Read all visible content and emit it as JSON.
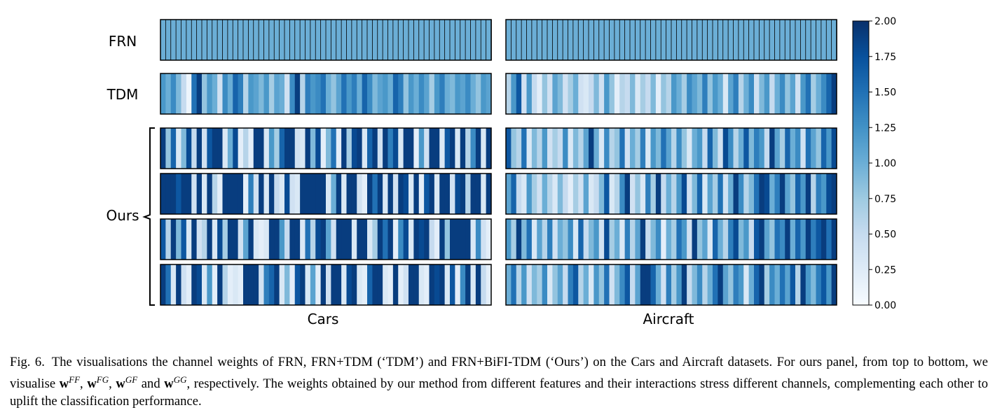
{
  "chart_data": {
    "type": "heatmap",
    "panels": [
      "Cars",
      "Aircraft"
    ],
    "row_labels": [
      "FRN",
      "TDM",
      "Ours"
    ],
    "colormap": "Blues",
    "vmin": 0,
    "vmax": 2.0,
    "colorbar_ticks": [
      "0.00",
      "0.25",
      "0.50",
      "0.75",
      "1.00",
      "1.25",
      "1.50",
      "1.75",
      "2.00"
    ],
    "channels_per_row": 64,
    "rows": [
      {
        "label": "FRN",
        "cars": [
          1.0,
          1.0,
          1.0,
          1.0,
          1.0,
          1.0,
          1.0,
          1.0,
          1.0,
          1.0,
          1.0,
          1.0,
          1.0,
          1.0,
          1.0,
          1.0,
          1.0,
          1.0,
          1.0,
          1.0,
          1.0,
          1.0,
          1.0,
          1.0,
          1.0,
          1.0,
          1.0,
          1.0,
          1.0,
          1.0,
          1.0,
          1.0,
          1.0,
          1.0,
          1.0,
          1.0,
          1.0,
          1.0,
          1.0,
          1.0,
          1.0,
          1.0,
          1.0,
          1.0,
          1.0,
          1.0,
          1.0,
          1.0,
          1.0,
          1.0,
          1.0,
          1.0,
          1.0,
          1.0,
          1.0,
          1.0,
          1.0,
          1.0,
          1.0,
          1.0,
          1.0,
          1.0,
          1.0,
          1.0
        ],
        "aircraft": [
          1.0,
          1.0,
          1.0,
          1.0,
          1.0,
          1.0,
          1.0,
          1.0,
          1.0,
          1.0,
          1.0,
          1.0,
          1.0,
          1.0,
          1.0,
          1.0,
          1.0,
          1.0,
          1.0,
          1.0,
          1.0,
          1.0,
          1.0,
          1.0,
          1.0,
          1.0,
          1.0,
          1.0,
          1.0,
          1.0,
          1.0,
          1.0,
          1.0,
          1.0,
          1.0,
          1.0,
          1.0,
          1.0,
          1.0,
          1.0,
          1.0,
          1.0,
          1.0,
          1.0,
          1.0,
          1.0,
          1.0,
          1.0,
          1.0,
          1.0,
          1.0,
          1.0,
          1.0,
          1.0,
          1.0,
          1.0,
          1.0,
          1.0,
          1.0,
          1.0,
          1.0,
          1.0,
          1.0,
          1.0
        ]
      },
      {
        "label": "TDM",
        "cars": [
          1.2,
          1.0,
          1.3,
          0.9,
          0.5,
          0.1,
          1.5,
          1.9,
          0.8,
          1.2,
          1.0,
          0.4,
          1.3,
          1.0,
          1.6,
          1.4,
          0.6,
          1.2,
          1.1,
          0.9,
          1.2,
          0.7,
          1.1,
          1.0,
          0.4,
          1.3,
          1.9,
          0.6,
          1.4,
          1.2,
          1.3,
          1.5,
          1.0,
          0.8,
          1.1,
          1.5,
          1.2,
          1.4,
          1.0,
          1.6,
          1.3,
          0.9,
          1.1,
          1.2,
          1.0,
          1.6,
          1.4,
          0.8,
          1.2,
          1.0,
          1.3,
          1.1,
          0.7,
          1.2,
          1.4,
          1.0,
          0.9,
          1.2,
          1.1,
          1.3,
          1.0,
          0.8,
          1.2,
          1.1
        ],
        "aircraft": [
          0.6,
          1.2,
          1.7,
          0.4,
          1.2,
          0.5,
          0.2,
          0.8,
          0.4,
          1.1,
          0.9,
          0.4,
          0.7,
          1.0,
          0.4,
          0.3,
          0.5,
          0.9,
          0.4,
          1.2,
          0.8,
          0.2,
          0.6,
          0.5,
          0.9,
          0.3,
          0.7,
          0.5,
          0.9,
          0.2,
          0.8,
          0.6,
          1.2,
          1.0,
          0.7,
          1.3,
          1.1,
          0.9,
          1.4,
          0.8,
          1.2,
          1.0,
          0.3,
          1.1,
          1.4,
          0.6,
          1.0,
          1.3,
          0.4,
          0.9,
          1.2,
          0.5,
          1.0,
          1.3,
          0.8,
          1.1,
          0.4,
          1.2,
          1.5,
          0.7,
          1.0,
          1.3,
          1.6,
          1.9
        ]
      },
      {
        "label": "Ours (w^FF)",
        "cars": [
          1.9,
          0.8,
          1.6,
          0.3,
          0.9,
          1.8,
          0.5,
          1.9,
          0.4,
          1.7,
          1.9,
          1.9,
          0.3,
          1.0,
          1.8,
          0.2,
          0.6,
          0.2,
          1.9,
          1.9,
          0.3,
          1.2,
          0.7,
          1.6,
          1.9,
          1.9,
          0.4,
          0.3,
          1.9,
          0.9,
          1.8,
          0.2,
          0.9,
          1.5,
          0.2,
          1.9,
          0.7,
          1.8,
          1.9,
          0.3,
          1.6,
          1.9,
          0.4,
          1.9,
          1.4,
          1.8,
          0.3,
          1.9,
          1.9,
          0.2,
          1.2,
          0.4,
          1.9,
          1.9,
          0.3,
          1.7,
          1.9,
          0.3,
          1.9,
          0.6,
          1.3,
          1.9,
          0.3,
          1.9
        ],
        "aircraft": [
          1.7,
          0.8,
          0.6,
          1.5,
          0.3,
          0.9,
          0.6,
          1.2,
          0.4,
          0.7,
          0.5,
          1.3,
          0.3,
          0.9,
          0.6,
          1.1,
          1.9,
          1.0,
          0.3,
          1.3,
          0.6,
          0.8,
          1.5,
          0.4,
          1.0,
          0.7,
          1.4,
          0.3,
          1.2,
          0.9,
          1.5,
          1.1,
          0.6,
          1.3,
          0.8,
          0.3,
          1.0,
          1.2,
          0.5,
          1.6,
          0.9,
          0.4,
          1.8,
          1.3,
          0.6,
          1.0,
          1.7,
          0.9,
          1.4,
          1.2,
          0.5,
          1.9,
          1.1,
          0.7,
          1.6,
          1.0,
          1.3,
          0.4,
          1.5,
          1.1,
          0.8,
          1.6,
          1.2,
          1.8
        ]
      },
      {
        "label": "Ours (w^FG)",
        "cars": [
          1.9,
          1.9,
          1.9,
          1.7,
          1.9,
          1.9,
          0.4,
          1.9,
          0.3,
          1.9,
          0.6,
          0.2,
          1.9,
          1.9,
          1.9,
          1.9,
          0.2,
          1.4,
          0.4,
          1.9,
          0.3,
          1.9,
          0.5,
          0.3,
          1.8,
          0.4,
          0.3,
          1.9,
          1.9,
          1.9,
          1.9,
          1.9,
          0.3,
          1.0,
          1.9,
          0.3,
          1.9,
          1.9,
          0.4,
          0.2,
          1.9,
          1.5,
          1.9,
          0.3,
          1.9,
          0.4,
          1.9,
          1.8,
          0.3,
          1.9,
          0.2,
          1.7,
          1.9,
          0.3,
          1.9,
          1.9,
          0.4,
          1.8,
          1.9,
          0.6,
          1.9,
          1.9,
          0.3,
          1.9
        ],
        "aircraft": [
          1.1,
          1.6,
          0.5,
          0.3,
          1.2,
          0.7,
          0.4,
          1.0,
          0.6,
          0.3,
          0.9,
          0.5,
          0.2,
          0.7,
          0.4,
          1.1,
          0.3,
          0.5,
          0.9,
          1.7,
          0.3,
          0.6,
          1.3,
          1.9,
          0.4,
          0.8,
          0.3,
          1.4,
          0.7,
          1.9,
          0.5,
          1.0,
          0.6,
          1.2,
          1.8,
          0.4,
          0.9,
          1.6,
          0.3,
          1.1,
          0.7,
          1.5,
          0.4,
          1.0,
          1.9,
          1.3,
          0.6,
          0.9,
          1.5,
          1.9,
          1.8,
          1.0,
          1.4,
          1.9,
          1.1,
          0.8,
          1.6,
          1.2,
          1.9,
          0.6,
          1.4,
          1.2,
          1.8,
          1.9
        ]
      },
      {
        "label": "Ours (w^GF)",
        "cars": [
          1.7,
          0.6,
          1.9,
          0.9,
          1.7,
          0.3,
          1.9,
          0.4,
          0.6,
          1.9,
          0.3,
          1.8,
          0.7,
          1.9,
          1.9,
          0.4,
          1.1,
          1.9,
          0.3,
          0.2,
          0.3,
          1.9,
          1.9,
          1.2,
          0.5,
          1.9,
          1.9,
          0.3,
          1.5,
          0.6,
          1.8,
          1.9,
          1.1,
          0.4,
          1.9,
          1.9,
          1.9,
          0.3,
          1.9,
          1.9,
          0.3,
          0.7,
          1.9,
          1.5,
          1.9,
          0.2,
          1.3,
          1.8,
          0.3,
          1.9,
          1.8,
          1.9,
          0.5,
          0.2,
          1.9,
          0.8,
          1.9,
          1.9,
          1.9,
          1.9,
          0.3,
          1.3,
          0.4,
          0.2
        ],
        "aircraft": [
          1.2,
          0.7,
          1.9,
          0.9,
          1.5,
          0.3,
          1.1,
          0.6,
          1.4,
          0.4,
          1.0,
          0.8,
          1.3,
          0.3,
          1.6,
          0.5,
          0.9,
          1.2,
          0.4,
          1.8,
          0.7,
          1.0,
          0.3,
          1.4,
          0.6,
          1.1,
          1.9,
          0.5,
          0.9,
          1.3,
          0.2,
          1.0,
          0.7,
          1.5,
          1.2,
          0.4,
          1.9,
          0.8,
          1.1,
          0.3,
          1.6,
          1.0,
          0.6,
          1.4,
          1.8,
          0.9,
          1.2,
          0.5,
          1.7,
          1.9,
          1.1,
          0.8,
          1.5,
          1.3,
          1.9,
          1.0,
          1.6,
          1.2,
          1.9,
          1.4,
          1.7,
          1.9,
          1.5,
          1.9
        ]
      },
      {
        "label": "Ours (w^GG)",
        "cars": [
          1.9,
          1.5,
          0.3,
          1.9,
          0.4,
          0.2,
          1.9,
          1.8,
          0.3,
          1.2,
          0.2,
          1.9,
          0.6,
          0.2,
          0.3,
          0.2,
          1.9,
          1.9,
          1.9,
          0.4,
          1.4,
          1.6,
          1.9,
          0.3,
          0.9,
          0.2,
          1.7,
          1.9,
          0.3,
          1.1,
          0.2,
          1.9,
          0.4,
          1.9,
          1.9,
          0.3,
          1.8,
          1.9,
          0.3,
          0.2,
          1.6,
          1.9,
          1.9,
          0.3,
          0.2,
          1.9,
          0.2,
          0.4,
          1.9,
          1.9,
          0.3,
          0.2,
          1.9,
          1.8,
          1.9,
          0.3,
          1.7,
          0.2,
          1.3,
          1.9,
          0.3,
          1.9,
          0.5,
          0.2
        ],
        "aircraft": [
          1.0,
          1.5,
          0.6,
          1.2,
          0.4,
          0.9,
          0.7,
          1.3,
          0.3,
          0.8,
          1.1,
          0.5,
          1.4,
          1.7,
          0.6,
          1.0,
          0.3,
          1.2,
          0.8,
          1.5,
          0.4,
          0.9,
          1.3,
          1.7,
          0.5,
          1.1,
          1.9,
          1.9,
          1.6,
          1.0,
          0.4,
          1.4,
          0.7,
          1.2,
          1.9,
          0.5,
          0.9,
          1.3,
          0.6,
          1.0,
          1.5,
          1.9,
          1.1,
          0.8,
          1.4,
          1.2,
          0.3,
          1.0,
          1.6,
          1.9,
          0.7,
          1.3,
          1.0,
          1.5,
          1.1,
          1.7,
          0.6,
          1.9,
          1.2,
          0.9,
          1.4,
          1.7,
          1.2,
          1.9
        ]
      }
    ]
  },
  "labels": {
    "row_frn": "FRN",
    "row_tdm": "TDM",
    "row_ours": "Ours",
    "panel_cars": "Cars",
    "panel_aircraft": "Aircraft"
  },
  "caption": {
    "fig_number": "Fig. 6.",
    "text_1": "The visualisations the channel weights of FRN, FRN+TDM (‘TDM’) and FRN+BiFI-TDM (‘Ours’) on the Cars and Aircraft datasets. For ours panel, from top to bottom, we visualise ",
    "w": "w",
    "sup_ff": "FF",
    "sup_fg": "FG",
    "sup_gf": "GF",
    "sup_gg": "GG",
    "sep": ", ",
    "and": " and ",
    "text_2": ", respectively. The weights obtained by our method from different features and their interactions stress different channels, complementing each other to uplift the classification performance."
  }
}
